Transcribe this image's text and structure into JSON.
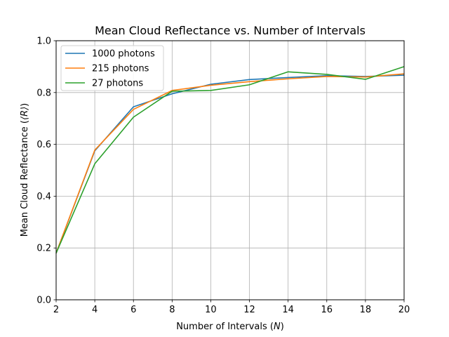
{
  "chart_data": {
    "type": "line",
    "title": "Mean Cloud Reflectance vs. Number of Intervals",
    "xlabel_text": "Number of Intervals (",
    "xlabel_var": "N",
    "xlabel_close": ")",
    "ylabel_text": "Mean Cloud Reflectance (",
    "ylabel_var": "⟨R⟩",
    "ylabel_close": ")",
    "xlim": [
      2,
      20
    ],
    "ylim": [
      0.0,
      1.0
    ],
    "xticks": [
      2,
      4,
      6,
      8,
      10,
      12,
      14,
      16,
      18,
      20
    ],
    "xtick_labels": [
      "2",
      "4",
      "6",
      "8",
      "10",
      "12",
      "14",
      "16",
      "18",
      "20"
    ],
    "yticks": [
      0.0,
      0.2,
      0.4,
      0.6,
      0.8,
      1.0
    ],
    "ytick_labels": [
      "0.0",
      "0.2",
      "0.4",
      "0.6",
      "0.8",
      "1.0"
    ],
    "grid": true,
    "legend_position": "top-left",
    "x": [
      2,
      4,
      6,
      8,
      10,
      12,
      14,
      16,
      18,
      20
    ],
    "series": [
      {
        "name": "1000 photons",
        "color": "#1f77b4",
        "values": [
          0.18,
          0.575,
          0.745,
          0.795,
          0.832,
          0.85,
          0.858,
          0.865,
          0.862,
          0.867
        ]
      },
      {
        "name": "215 photons",
        "color": "#ff7f0e",
        "values": [
          0.18,
          0.578,
          0.735,
          0.808,
          0.828,
          0.842,
          0.853,
          0.862,
          0.86,
          0.872
        ]
      },
      {
        "name": "27 photons",
        "color": "#2ca02c",
        "values": [
          0.18,
          0.525,
          0.705,
          0.805,
          0.808,
          0.83,
          0.88,
          0.87,
          0.851,
          0.9
        ]
      }
    ]
  }
}
